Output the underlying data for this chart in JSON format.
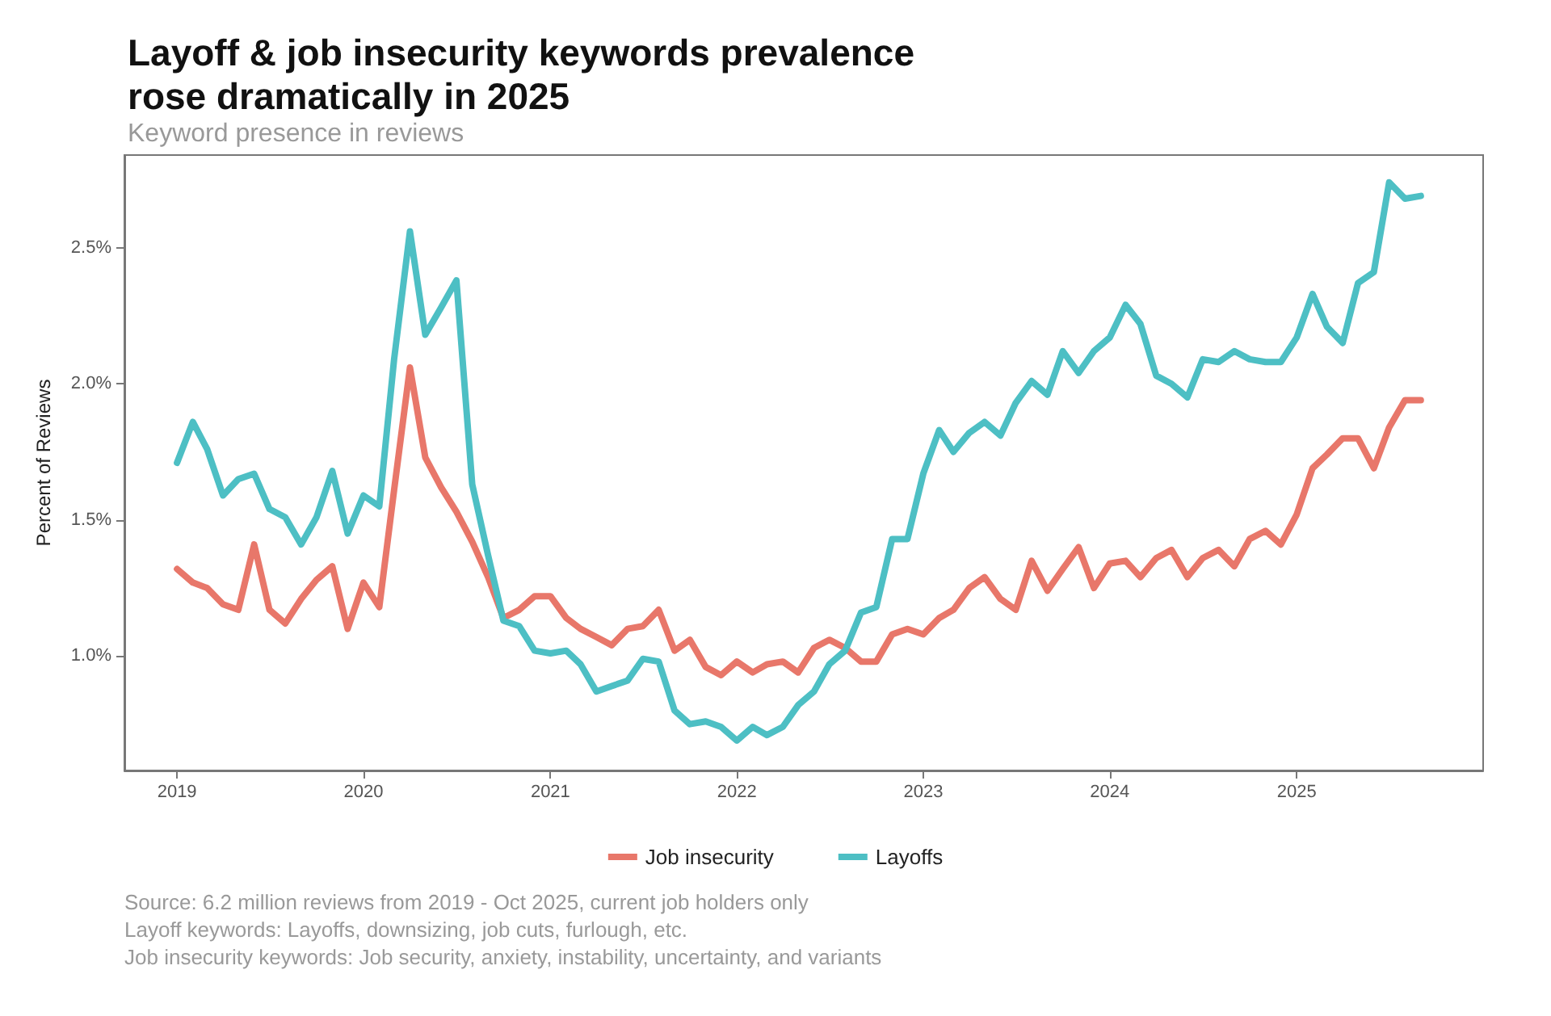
{
  "chart_data": {
    "type": "line",
    "title": "Layoff & job insecurity keywords prevalence\nrose dramatically in 2025",
    "subtitle": "Keyword presence in reviews",
    "ylabel": "Percent of Reviews",
    "x": [
      "2019-01",
      "2019-02",
      "2019-03",
      "2019-04",
      "2019-05",
      "2019-06",
      "2019-07",
      "2019-08",
      "2019-09",
      "2019-10",
      "2019-11",
      "2019-12",
      "2020-01",
      "2020-02",
      "2020-03",
      "2020-04",
      "2020-05",
      "2020-06",
      "2020-07",
      "2020-08",
      "2020-09",
      "2020-10",
      "2020-11",
      "2020-12",
      "2021-01",
      "2021-02",
      "2021-03",
      "2021-04",
      "2021-05",
      "2021-06",
      "2021-07",
      "2021-08",
      "2021-09",
      "2021-10",
      "2021-11",
      "2021-12",
      "2022-01",
      "2022-02",
      "2022-03",
      "2022-04",
      "2022-05",
      "2022-06",
      "2022-07",
      "2022-08",
      "2022-09",
      "2022-10",
      "2022-11",
      "2022-12",
      "2023-01",
      "2023-02",
      "2023-03",
      "2023-04",
      "2023-05",
      "2023-06",
      "2023-07",
      "2023-08",
      "2023-09",
      "2023-10",
      "2023-11",
      "2023-12",
      "2024-01",
      "2024-02",
      "2024-03",
      "2024-04",
      "2024-05",
      "2024-06",
      "2024-07",
      "2024-08",
      "2024-09",
      "2024-10",
      "2024-11",
      "2024-12",
      "2025-01",
      "2025-02",
      "2025-03",
      "2025-04",
      "2025-05",
      "2025-06",
      "2025-07",
      "2025-08",
      "2025-09"
    ],
    "series": [
      {
        "name": "Job insecurity",
        "color": "#e8776a",
        "values": [
          1.32,
          1.27,
          1.25,
          1.19,
          1.17,
          1.41,
          1.17,
          1.12,
          1.21,
          1.28,
          1.33,
          1.1,
          1.27,
          1.18,
          1.61,
          2.06,
          1.73,
          1.62,
          1.53,
          1.42,
          1.29,
          1.14,
          1.17,
          1.22,
          1.22,
          1.14,
          1.1,
          1.07,
          1.04,
          1.1,
          1.11,
          1.17,
          1.02,
          1.06,
          0.96,
          0.93,
          0.98,
          0.94,
          0.97,
          0.98,
          0.94,
          1.03,
          1.06,
          1.03,
          0.98,
          0.98,
          1.08,
          1.1,
          1.08,
          1.14,
          1.17,
          1.25,
          1.29,
          1.21,
          1.17,
          1.35,
          1.24,
          1.32,
          1.4,
          1.25,
          1.34,
          1.35,
          1.29,
          1.36,
          1.39,
          1.29,
          1.36,
          1.39,
          1.33,
          1.43,
          1.46,
          1.41,
          1.52,
          1.69,
          1.74,
          1.8,
          1.8,
          1.69,
          1.84,
          1.94,
          1.94
        ]
      },
      {
        "name": "Layoffs",
        "color": "#4dbfc4",
        "values": [
          1.71,
          1.86,
          1.76,
          1.59,
          1.65,
          1.67,
          1.54,
          1.51,
          1.41,
          1.51,
          1.68,
          1.45,
          1.59,
          1.55,
          2.09,
          2.56,
          2.18,
          2.28,
          2.38,
          1.63,
          1.37,
          1.13,
          1.11,
          1.02,
          1.01,
          1.02,
          0.97,
          0.87,
          0.89,
          0.91,
          0.99,
          0.98,
          0.8,
          0.75,
          0.76,
          0.74,
          0.69,
          0.74,
          0.71,
          0.74,
          0.82,
          0.87,
          0.97,
          1.02,
          1.16,
          1.18,
          1.43,
          1.43,
          1.67,
          1.83,
          1.75,
          1.82,
          1.86,
          1.81,
          1.93,
          2.01,
          1.96,
          2.12,
          2.04,
          2.12,
          2.17,
          2.29,
          2.22,
          2.03,
          2.0,
          1.95,
          2.09,
          2.08,
          2.12,
          2.09,
          2.08,
          2.08,
          2.17,
          2.33,
          2.21,
          2.15,
          2.37,
          2.41,
          2.74,
          2.68,
          2.69
        ]
      }
    ],
    "xlim": [
      "2018-09-20",
      "2026-01-01"
    ],
    "xticks": [
      {
        "value": "2019-01",
        "label": "2019"
      },
      {
        "value": "2020-01",
        "label": "2020"
      },
      {
        "value": "2021-01",
        "label": "2021"
      },
      {
        "value": "2022-01",
        "label": "2022"
      },
      {
        "value": "2023-01",
        "label": "2023"
      },
      {
        "value": "2024-01",
        "label": "2024"
      },
      {
        "value": "2025-01",
        "label": "2025"
      }
    ],
    "ylim": [
      0.58,
      2.84
    ],
    "yticks": [
      {
        "value": 1.0,
        "label": "1.0%"
      },
      {
        "value": 1.5,
        "label": "1.5%"
      },
      {
        "value": 2.0,
        "label": "2.0%"
      },
      {
        "value": 2.5,
        "label": "2.5%"
      }
    ],
    "grid": false,
    "legend": "bottom",
    "marker": "none",
    "line_style": "solid",
    "annotations": [
      "Source: 6.2 million reviews from 2019 - Oct 2025, current job holders only",
      "Layoff keywords: Layoffs, downsizing, job cuts, furlough, etc.",
      "Job insecurity keywords: Job security, anxiety, instability, uncertainty, and variants"
    ]
  }
}
